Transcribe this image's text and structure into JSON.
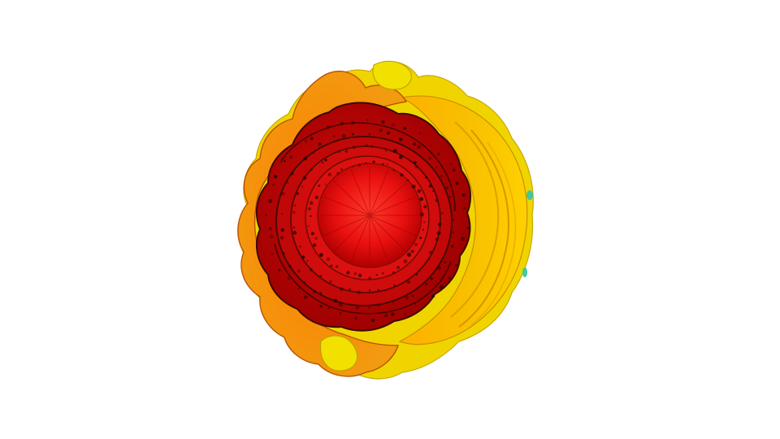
{
  "canvas": {
    "background": "#ffffff"
  },
  "subject": {
    "name": "layered-flower-render",
    "colors": {
      "outer_yellow": "#f2e000",
      "outer_gold": "#f5b800",
      "orange": "#ff8800",
      "dark_orange": "#e65c00",
      "deep_red": "#b80000",
      "red": "#e01010",
      "bright_red": "#ff2222",
      "shadow": "#3a0a00",
      "teal_accent": "#40c8a0"
    }
  }
}
